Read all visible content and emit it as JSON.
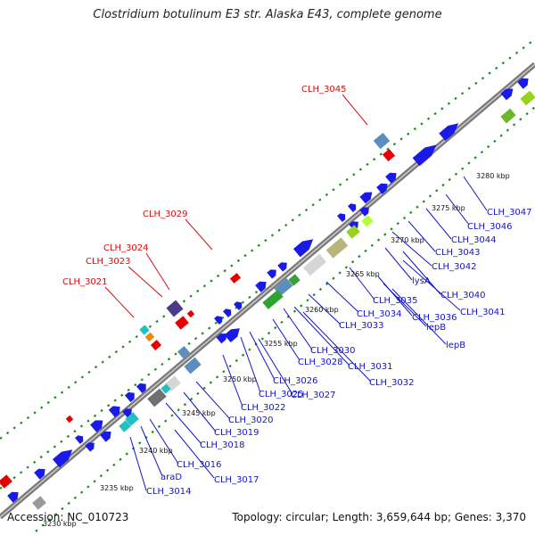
{
  "title": "Clostridium botulinum E3 str. Alaska E43, complete genome",
  "footer": {
    "accession": "Accession: NC_010723",
    "info": "Topology: circular; Length: 3,659,644 bp; Genes: 3,370"
  },
  "colors": {
    "backbone": "#7a7a7a",
    "cds": "#1a1ae6",
    "highlight_label": "#d01010",
    "gene_label": "#1414c8",
    "dots": "#1e8c1e"
  },
  "scale_ticks": [
    "3230 kbp",
    "3235 kbp",
    "3240 kbp",
    "3245 kbp",
    "3250 kbp",
    "3255 kbp",
    "3260 kbp",
    "3265 kbp",
    "3270 kbp",
    "3275 kbp",
    "3280 kbp"
  ],
  "red_labels": [
    "CLH_3045",
    "CLH_3029",
    "CLH_3024",
    "CLH_3023",
    "CLH_3021"
  ],
  "gene_labels": [
    "CLH_3047",
    "CLH_3046",
    "CLH_3044",
    "CLH_3043",
    "CLH_3042",
    "lysA",
    "CLH_3040",
    "CLH_3041",
    "CLH_3035",
    "CLH_3036",
    "lepB",
    "lepB",
    "CLH_3034",
    "CLH_3033",
    "CLH_3030",
    "CLH_3028",
    "CLH_3031",
    "CLH_3032",
    "CLH_3026",
    "CLH_3027",
    "CLH_3025",
    "CLH_3022",
    "CLH_3020",
    "CLH_3019",
    "CLH_3018",
    "CLH_3016",
    "CLH_3017",
    "araD",
    "CLH_3014"
  ]
}
